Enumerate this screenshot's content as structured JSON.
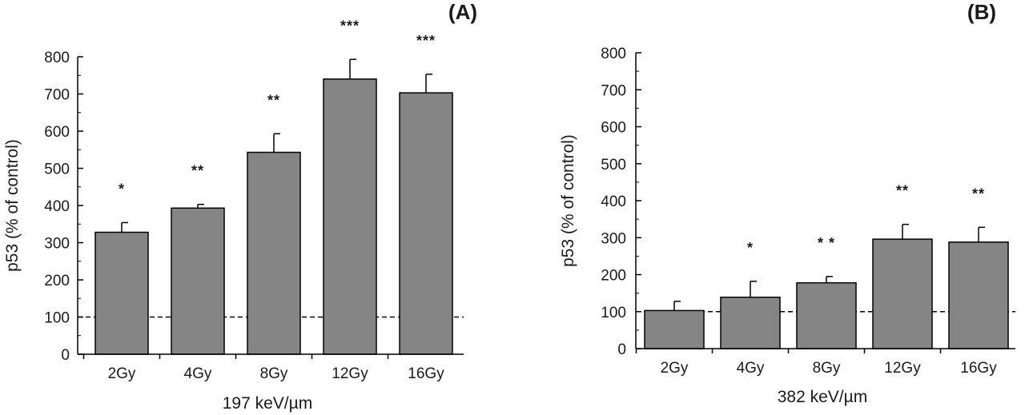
{
  "chart_data": [
    {
      "type": "bar",
      "panel_label": "(A)",
      "categories": [
        "2Gy",
        "4Gy",
        "8Gy",
        "12Gy",
        "16Gy"
      ],
      "values": [
        328,
        393,
        543,
        740,
        703
      ],
      "errors": [
        26,
        10,
        50,
        53,
        50
      ],
      "significance": [
        "*",
        "**",
        "**",
        "***",
        "***"
      ],
      "xlabel": "197 keV/µm",
      "ylabel": "p53 (% of control)",
      "ylim": [
        0,
        800
      ],
      "yticks": [
        0,
        100,
        200,
        300,
        400,
        500,
        600,
        700,
        800
      ],
      "reference_line": 100,
      "bar_color": "#858585",
      "grid": false
    },
    {
      "type": "bar",
      "panel_label": "(B)",
      "categories": [
        "2Gy",
        "4Gy",
        "8Gy",
        "12Gy",
        "16Gy"
      ],
      "values": [
        103,
        139,
        178,
        296,
        288
      ],
      "errors": [
        25,
        43,
        17,
        40,
        40
      ],
      "significance": [
        "",
        "*",
        "* *",
        "**",
        "**"
      ],
      "xlabel": "382 keV/µm",
      "ylabel": "p53 (% of control)",
      "ylim": [
        0,
        800
      ],
      "yticks": [
        0,
        100,
        200,
        300,
        400,
        500,
        600,
        700,
        800
      ],
      "reference_line": 100,
      "bar_color": "#858585",
      "grid": false
    }
  ]
}
